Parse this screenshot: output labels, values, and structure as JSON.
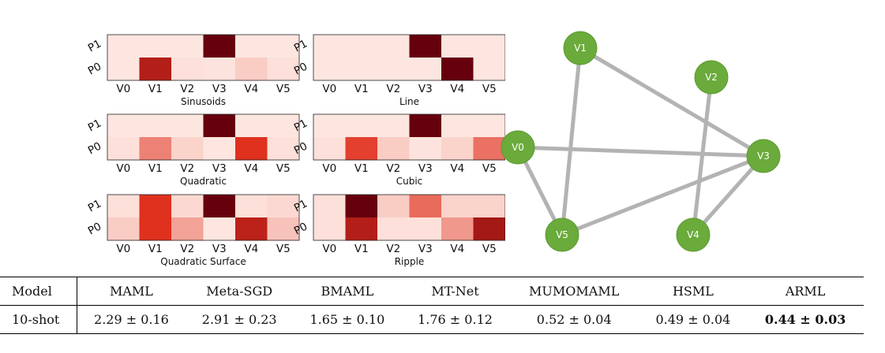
{
  "heatmaps": [
    {
      "title": "Sinusoids",
      "rows": [
        "P1",
        "P0"
      ],
      "cols": [
        "V0",
        "V1",
        "V2",
        "V3",
        "V4",
        "V5"
      ],
      "values": [
        [
          0.04,
          0.04,
          0.04,
          1.0,
          0.04,
          0.04
        ],
        [
          0.04,
          0.75,
          0.06,
          0.05,
          0.12,
          0.06
        ]
      ]
    },
    {
      "title": "Line",
      "rows": [
        "P1",
        "P0"
      ],
      "cols": [
        "V0",
        "V1",
        "V2",
        "V3",
        "V4",
        "V5"
      ],
      "values": [
        [
          0.04,
          0.04,
          0.04,
          1.0,
          0.04,
          0.04
        ],
        [
          0.04,
          0.04,
          0.04,
          0.04,
          1.0,
          0.04
        ]
      ]
    },
    {
      "title": "Quadratic",
      "rows": [
        "P1",
        "P0"
      ],
      "cols": [
        "V0",
        "V1",
        "V2",
        "V3",
        "V4",
        "V5"
      ],
      "values": [
        [
          0.04,
          0.04,
          0.04,
          1.0,
          0.04,
          0.04
        ],
        [
          0.06,
          0.35,
          0.1,
          0.04,
          0.6,
          0.06
        ]
      ]
    },
    {
      "title": "Cubic",
      "rows": [
        "P1",
        "P0"
      ],
      "cols": [
        "V0",
        "V1",
        "V2",
        "V3",
        "V4",
        "V5"
      ],
      "values": [
        [
          0.04,
          0.04,
          0.04,
          1.0,
          0.04,
          0.04
        ],
        [
          0.06,
          0.55,
          0.12,
          0.05,
          0.1,
          0.4
        ]
      ]
    },
    {
      "title": "Quadratic Surface",
      "rows": [
        "P1",
        "P0"
      ],
      "cols": [
        "V0",
        "V1",
        "V2",
        "V3",
        "V4",
        "V5"
      ],
      "values": [
        [
          0.06,
          0.6,
          0.08,
          1.0,
          0.06,
          0.08
        ],
        [
          0.12,
          0.6,
          0.25,
          0.04,
          0.72,
          0.15
        ]
      ]
    },
    {
      "title": "Ripple",
      "rows": [
        "P1",
        "P0"
      ],
      "cols": [
        "V0",
        "V1",
        "V2",
        "V3",
        "V4",
        "V5"
      ],
      "values": [
        [
          0.06,
          1.0,
          0.12,
          0.42,
          0.1,
          0.1
        ],
        [
          0.06,
          0.75,
          0.06,
          0.06,
          0.28,
          0.8
        ]
      ]
    }
  ],
  "graph": {
    "nodes": [
      "V0",
      "V1",
      "V2",
      "V3",
      "V4",
      "V5"
    ],
    "edges": [
      [
        "V1",
        "V3"
      ],
      [
        "V1",
        "V5"
      ],
      [
        "V0",
        "V3"
      ],
      [
        "V0",
        "V5"
      ],
      [
        "V2",
        "V4"
      ],
      [
        "V5",
        "V3"
      ],
      [
        "V4",
        "V3"
      ]
    ],
    "node_color": "#6aab3c",
    "edge_color": "#b3b3b3"
  },
  "colors": {
    "heat_low": "#fff3ee",
    "heat_mid": "#e0301e",
    "heat_high": "#67000d"
  },
  "table": {
    "header": [
      "Model",
      "MAML",
      "Meta-SGD",
      "BMAML",
      "MT-Net",
      "MUMOMAML",
      "HSML",
      "ARML"
    ],
    "row": [
      "10-shot",
      "2.29 ± 0.16",
      "2.91 ± 0.23",
      "1.65 ± 0.10",
      "1.76 ± 0.12",
      "0.52 ± 0.04",
      "0.49 ± 0.04",
      "0.44 ± 0.03"
    ],
    "best_column": "ARML"
  }
}
